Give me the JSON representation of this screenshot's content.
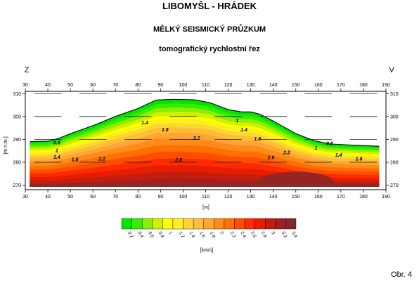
{
  "titles": {
    "line1": "LIBOMYŠL - HRÁDEK",
    "line2": "MĚLKÝ SEISMICKÝ PRŮZKUM",
    "line3": "tomografický rychlostní řez"
  },
  "figure_label": "Obr. 4",
  "chart_data": {
    "type": "heatmap",
    "title": "tomografický rychlostní řez",
    "xlabel": "[m]",
    "ylabel": "[m n.m.]",
    "direction_left": "Z",
    "direction_right": "V",
    "xlim": [
      30,
      190
    ],
    "ylim": [
      268,
      311
    ],
    "x_ticks": [
      30,
      40,
      50,
      60,
      70,
      80,
      90,
      100,
      110,
      120,
      130,
      140,
      150,
      160,
      170,
      180,
      190
    ],
    "y_ticks": [
      270,
      280,
      290,
      300,
      310
    ],
    "dashed_gridlines": true,
    "surface_profile": [
      [
        32,
        289
      ],
      [
        40,
        289.2
      ],
      [
        45,
        290.5
      ],
      [
        50,
        292.5
      ],
      [
        60,
        296
      ],
      [
        70,
        300
      ],
      [
        80,
        303.5
      ],
      [
        88,
        307.2
      ],
      [
        95,
        307.5
      ],
      [
        105,
        307.3
      ],
      [
        112,
        306
      ],
      [
        120,
        303
      ],
      [
        126,
        302
      ],
      [
        130,
        302
      ],
      [
        134,
        301
      ],
      [
        140,
        298
      ],
      [
        150,
        292.5
      ],
      [
        158,
        289.5
      ],
      [
        165,
        288
      ],
      [
        175,
        287.5
      ],
      [
        187,
        287
      ]
    ],
    "contour_labels": [
      {
        "x": 44,
        "y": 287.8,
        "text": "0.6"
      },
      {
        "x": 44,
        "y": 284.5,
        "text": "1"
      },
      {
        "x": 44,
        "y": 281.5,
        "text": "1.4"
      },
      {
        "x": 52,
        "y": 280.5,
        "text": "1.8"
      },
      {
        "x": 64,
        "y": 280.8,
        "text": "2.2"
      },
      {
        "x": 83,
        "y": 296.5,
        "text": "1.4"
      },
      {
        "x": 92,
        "y": 293.5,
        "text": "1.8"
      },
      {
        "x": 106,
        "y": 289.8,
        "text": "2.2"
      },
      {
        "x": 98,
        "y": 280.3,
        "text": "2.6"
      },
      {
        "x": 124,
        "y": 297.5,
        "text": "1"
      },
      {
        "x": 127,
        "y": 293.5,
        "text": "1.4"
      },
      {
        "x": 133,
        "y": 289.5,
        "text": "1.8"
      },
      {
        "x": 146,
        "y": 283.5,
        "text": "2.2"
      },
      {
        "x": 139,
        "y": 281.3,
        "text": "2.6"
      },
      {
        "x": 159,
        "y": 285.5,
        "text": "1"
      },
      {
        "x": 165,
        "y": 287.5,
        "text": "0.6"
      },
      {
        "x": 169,
        "y": 282.5,
        "text": "1.4"
      },
      {
        "x": 178,
        "y": 280.7,
        "text": "1.8"
      }
    ],
    "colorbar": {
      "label": "[km/s]",
      "ticks": [
        "0.2",
        "0.4",
        "0.6",
        "0.8",
        "1",
        "1.2",
        "1.4",
        "1.6",
        "1.8",
        "2",
        "2.2",
        "2.4",
        "2.6",
        "2.8",
        "3",
        "3.2",
        "3.4"
      ],
      "colors": [
        "#00e600",
        "#33ee00",
        "#88f000",
        "#ccf200",
        "#ffff00",
        "#ffee22",
        "#ffd633",
        "#ffbe33",
        "#ffa533",
        "#ff8c1a",
        "#ff7000",
        "#ff4d00",
        "#ff2a00",
        "#e81d00",
        "#c21d10",
        "#a32020",
        "#802a2a"
      ]
    }
  }
}
